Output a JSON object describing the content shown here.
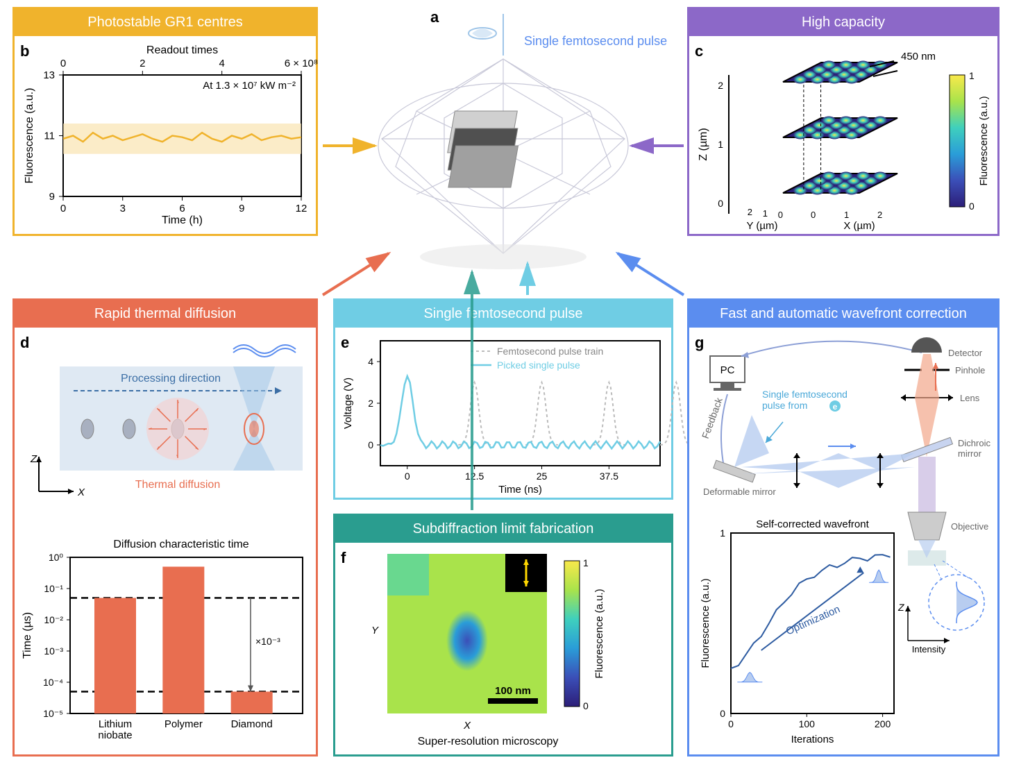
{
  "colors": {
    "b": "#f0b32c",
    "c": "#8c68c8",
    "d": "#e86e50",
    "e": "#6fcde4",
    "f": "#2a9d8f",
    "g": "#5b8def",
    "text": "#000000",
    "grid": "#cccccc"
  },
  "panel_a": {
    "label": "a",
    "annotation": "Single femtosecond pulse",
    "annotation_color": "#5b8def"
  },
  "panel_b": {
    "label": "b",
    "title": "Photostable GR1 centres",
    "x_label_bottom": "Time (h)",
    "x_label_top": "Readout times",
    "y_label": "Fluorescence (a.u.)",
    "annotation": "At 1.3 × 10⁷ kW m⁻²",
    "x_ticks_bottom": [
      0,
      3,
      6,
      9,
      12
    ],
    "x_ticks_top": [
      "0",
      "2",
      "4",
      "6 × 10⁸"
    ],
    "y_ticks": [
      9,
      11,
      13
    ],
    "line_color": "#f0b32c",
    "band_color": "#f9e4b0",
    "data_x": [
      0,
      0.5,
      1,
      1.5,
      2,
      2.5,
      3,
      3.5,
      4,
      4.5,
      5,
      5.5,
      6,
      6.5,
      7,
      7.5,
      8,
      8.5,
      9,
      9.5,
      10,
      10.5,
      11,
      11.5,
      12
    ],
    "data_y": [
      10.9,
      11.0,
      10.8,
      11.1,
      10.9,
      11.0,
      10.85,
      10.95,
      11.05,
      10.9,
      10.8,
      11.0,
      10.95,
      10.85,
      11.1,
      10.9,
      10.8,
      11.0,
      10.9,
      11.05,
      10.85,
      10.95,
      11.0,
      10.9,
      10.95
    ],
    "band_low": 10.4,
    "band_high": 11.4
  },
  "panel_c": {
    "label": "c",
    "title": "High capacity",
    "spacing_label": "450 nm",
    "z_label": "Z (µm)",
    "x_label": "X (µm)",
    "y_label": "Y (µm)",
    "cbar_label": "Fluorescence (a.u.)",
    "cbar_min": "0",
    "cbar_max": "1",
    "z_ticks": [
      0,
      1,
      2
    ],
    "x_ticks": [
      0,
      1,
      2
    ],
    "y_ticks": [
      0,
      1,
      2
    ],
    "colormap": [
      "#2c1e78",
      "#3b4fb8",
      "#2a9dd8",
      "#3fd0bd",
      "#a9e34b",
      "#f9e94b"
    ]
  },
  "panel_d": {
    "label": "d",
    "title": "Rapid thermal diffusion",
    "annotation_proc": "Processing direction",
    "annotation_thermal": "Thermal diffusion",
    "axis_z": "Z",
    "axis_x": "X",
    "chart_title": "Diffusion characteristic time",
    "y_label": "Time (µs)",
    "categories": [
      "Lithium\nniobate",
      "Polymer",
      "Diamond"
    ],
    "values_log": [
      -1.3,
      -0.3,
      -4.3
    ],
    "bar_color": "#e86e50",
    "y_ticks": [
      -5,
      -4,
      -3,
      -2,
      -1,
      0
    ],
    "y_tick_labels": [
      "10⁻⁵",
      "10⁻⁴",
      "10⁻³",
      "10⁻²",
      "10⁻¹",
      "10⁰"
    ],
    "dash_lines": [
      -1.3,
      -4.3
    ],
    "arrow_label": "×10⁻³"
  },
  "panel_e": {
    "label": "e",
    "title": "Single femtosecond pulse",
    "y_label": "Voltage (V)",
    "x_label": "Time (ns)",
    "legend1": "Femtosecond pulse train",
    "legend2": "Picked single pulse",
    "x_ticks": [
      0,
      12.5,
      25.0,
      37.5
    ],
    "y_ticks": [
      0,
      2,
      4
    ],
    "line_color_solid": "#6fcde4",
    "line_color_dash": "#bbbbbb"
  },
  "panel_f": {
    "label": "f",
    "title": "Subdiffraction limit fabrication",
    "caption": "Super-resolution microscopy",
    "scale_bar": "100 nm",
    "cbar_label": "Fluorescence (a.u.)",
    "cbar_min": "0",
    "cbar_max": "1",
    "x_axis": "X",
    "y_axis": "Y",
    "colormap": [
      "#2c1e78",
      "#3b4fb8",
      "#2a9dd8",
      "#3fd0bd",
      "#a9e34b",
      "#f9e94b"
    ]
  },
  "panel_g": {
    "label": "g",
    "title": "Fast and automatic wavefront correction",
    "labels": {
      "pc": "PC",
      "detector": "Detector",
      "pinhole": "Pinhole",
      "lens": "Lens",
      "dichroic": "Dichroic\nmirror",
      "objective": "Objective",
      "deformable": "Deformable mirror",
      "feedback": "Feedback",
      "pulse_from": "Single femtosecond\npulse from ",
      "pulse_ref": "e",
      "intensity": "Intensity",
      "z": "Z"
    },
    "chart_title": "Self-corrected wavefront",
    "x_label": "Iterations",
    "y_label": "Fluorescence (a.u.)",
    "x_ticks": [
      0,
      100,
      200
    ],
    "y_ticks": [
      0,
      1
    ],
    "annotation": "Optimization",
    "line_color": "#2c5aa0",
    "data_x": [
      0,
      10,
      20,
      30,
      40,
      50,
      60,
      70,
      80,
      90,
      100,
      110,
      120,
      130,
      140,
      150,
      160,
      170,
      180,
      190,
      200,
      210
    ],
    "data_y": [
      0.25,
      0.28,
      0.32,
      0.38,
      0.44,
      0.5,
      0.56,
      0.62,
      0.67,
      0.71,
      0.74,
      0.77,
      0.79,
      0.81,
      0.82,
      0.84,
      0.85,
      0.86,
      0.86,
      0.87,
      0.87,
      0.88
    ]
  }
}
